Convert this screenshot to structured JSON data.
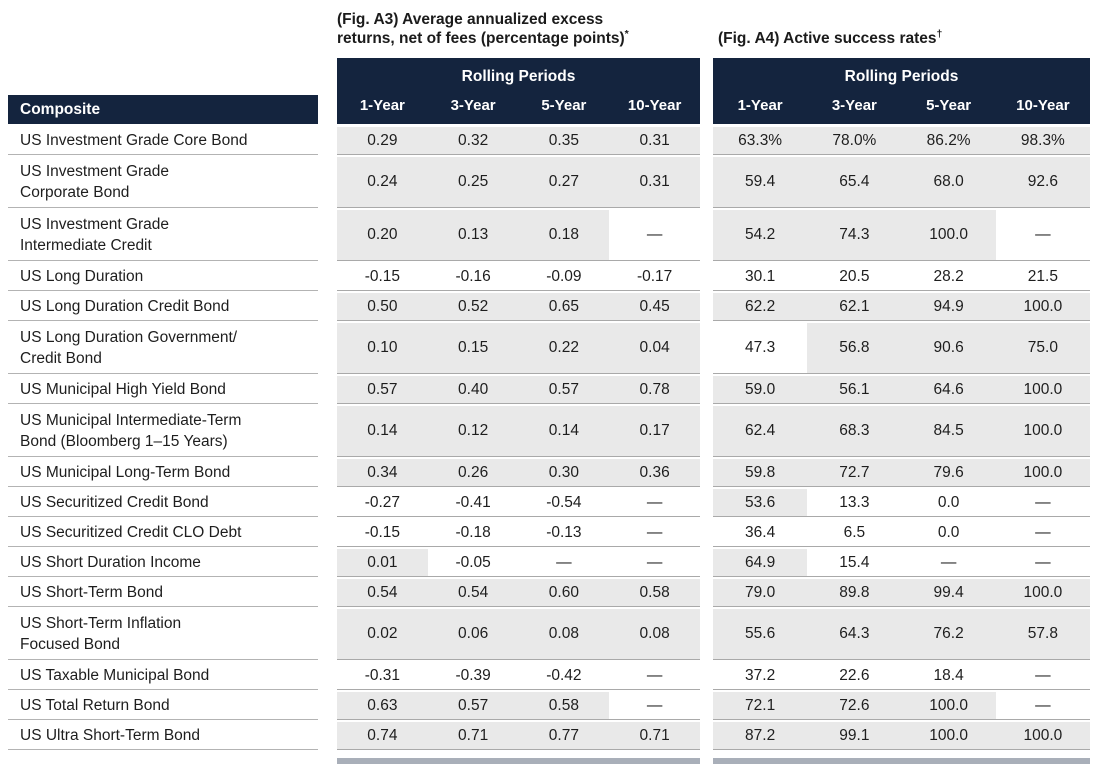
{
  "figures": {
    "a3": {
      "title_line1": "(Fig. A3) Average annualized excess",
      "title_line2": "returns, net of fees (percentage points)",
      "title_sup": "*"
    },
    "a4": {
      "title": "(Fig. A4) Active success rates",
      "title_sup": "†"
    }
  },
  "composite_header": "Composite",
  "composites": [
    {
      "lines": [
        "US Investment Grade Core Bond"
      ]
    },
    {
      "lines": [
        "US Investment Grade",
        "Corporate Bond"
      ]
    },
    {
      "lines": [
        "US Investment Grade",
        "Intermediate Credit"
      ]
    },
    {
      "lines": [
        "US Long Duration"
      ]
    },
    {
      "lines": [
        "US Long Duration Credit Bond"
      ]
    },
    {
      "lines": [
        "US Long Duration Government/",
        "Credit Bond"
      ]
    },
    {
      "lines": [
        "US Municipal High Yield Bond"
      ]
    },
    {
      "lines": [
        "US Municipal Intermediate-Term",
        "Bond (Bloomberg 1–15 Years)"
      ]
    },
    {
      "lines": [
        "US Municipal Long-Term Bond"
      ]
    },
    {
      "lines": [
        "US Securitized Credit Bond"
      ]
    },
    {
      "lines": [
        "US Securitized Credit CLO Debt"
      ]
    },
    {
      "lines": [
        "US Short Duration Income"
      ]
    },
    {
      "lines": [
        "US Short-Term Bond"
      ]
    },
    {
      "lines": [
        "US Short-Term Inflation",
        "Focused Bond"
      ]
    },
    {
      "lines": [
        "US Taxable Municipal Bond"
      ]
    },
    {
      "lines": [
        "US Total Return Bond"
      ]
    },
    {
      "lines": [
        "US Ultra Short-Term Bond"
      ]
    }
  ],
  "chart_data": [
    {
      "type": "table",
      "title": "(Fig. A3) Average annualized excess returns, net of fees (percentage points)*",
      "group_header": "Rolling Periods",
      "columns": [
        "1-Year",
        "3-Year",
        "5-Year",
        "10-Year"
      ],
      "values": [
        [
          "0.29",
          "0.32",
          "0.35",
          "0.31"
        ],
        [
          "0.24",
          "0.25",
          "0.27",
          "0.31"
        ],
        [
          "0.20",
          "0.13",
          "0.18",
          "—"
        ],
        [
          "-0.15",
          "-0.16",
          "-0.09",
          "-0.17"
        ],
        [
          "0.50",
          "0.52",
          "0.65",
          "0.45"
        ],
        [
          "0.10",
          "0.15",
          "0.22",
          "0.04"
        ],
        [
          "0.57",
          "0.40",
          "0.57",
          "0.78"
        ],
        [
          "0.14",
          "0.12",
          "0.14",
          "0.17"
        ],
        [
          "0.34",
          "0.26",
          "0.30",
          "0.36"
        ],
        [
          "-0.27",
          "-0.41",
          "-0.54",
          "—"
        ],
        [
          "-0.15",
          "-0.18",
          "-0.13",
          "—"
        ],
        [
          "0.01",
          "-0.05",
          "—",
          "—"
        ],
        [
          "0.54",
          "0.54",
          "0.60",
          "0.58"
        ],
        [
          "0.02",
          "0.06",
          "0.08",
          "0.08"
        ],
        [
          "-0.31",
          "-0.39",
          "-0.42",
          "—"
        ],
        [
          "0.63",
          "0.57",
          "0.58",
          "—"
        ],
        [
          "0.74",
          "0.71",
          "0.77",
          "0.71"
        ]
      ]
    },
    {
      "type": "table",
      "title": "(Fig. A4) Active success rates†",
      "group_header": "Rolling Periods",
      "columns": [
        "1-Year",
        "3-Year",
        "5-Year",
        "10-Year"
      ],
      "values": [
        [
          "63.3%",
          "78.0%",
          "86.2%",
          "98.3%"
        ],
        [
          "59.4",
          "65.4",
          "68.0",
          "92.6"
        ],
        [
          "54.2",
          "74.3",
          "100.0",
          "—"
        ],
        [
          "30.1",
          "20.5",
          "28.2",
          "21.5"
        ],
        [
          "62.2",
          "62.1",
          "94.9",
          "100.0"
        ],
        [
          "47.3",
          "56.8",
          "90.6",
          "75.0"
        ],
        [
          "59.0",
          "56.1",
          "64.6",
          "100.0"
        ],
        [
          "62.4",
          "68.3",
          "84.5",
          "100.0"
        ],
        [
          "59.8",
          "72.7",
          "79.6",
          "100.0"
        ],
        [
          "53.6",
          "13.3",
          "0.0",
          "—"
        ],
        [
          "36.4",
          "6.5",
          "0.0",
          "—"
        ],
        [
          "64.9",
          "15.4",
          "—",
          "—"
        ],
        [
          "79.0",
          "89.8",
          "99.4",
          "100.0"
        ],
        [
          "55.6",
          "64.3",
          "76.2",
          "57.8"
        ],
        [
          "37.2",
          "22.6",
          "18.4",
          "—"
        ],
        [
          "72.1",
          "72.6",
          "100.0",
          "—"
        ],
        [
          "87.2",
          "99.1",
          "100.0",
          "100.0"
        ]
      ]
    }
  ],
  "shading": {
    "a3_rule": "cell shaded when value > 0",
    "a4_rule": "cell shaded when value >= 50",
    "shade_color": "#e9e9e9"
  },
  "colors": {
    "header_navy": "#14243e",
    "shade": "#e9e9e9",
    "row_line": "#a9a9a9",
    "name_line": "#b3b3b3",
    "bottom_bar": "#a9afb9",
    "text": "#1e1e1e"
  }
}
